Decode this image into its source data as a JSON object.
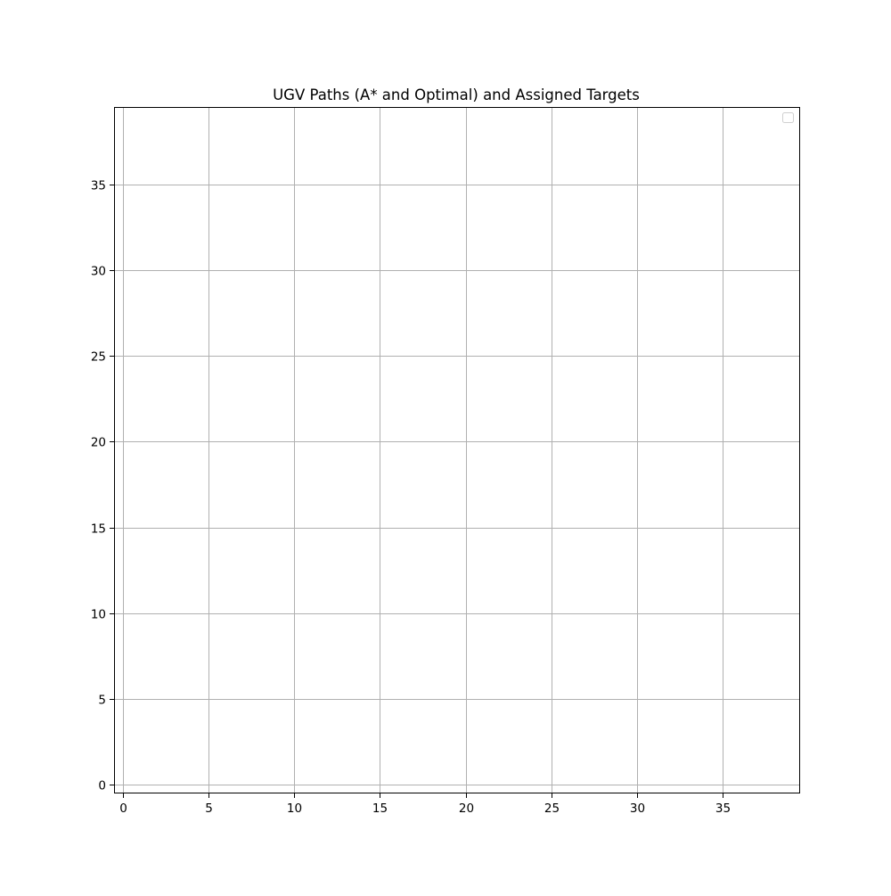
{
  "chart_data": {
    "type": "line",
    "title": "UGV Paths (A* and Optimal) and Assigned Targets",
    "xlabel": "",
    "ylabel": "",
    "xlim": [
      -0.5,
      39.5
    ],
    "ylim": [
      -0.5,
      39.5
    ],
    "xticks": [
      0,
      5,
      10,
      15,
      20,
      25,
      30,
      35
    ],
    "yticks": [
      0,
      5,
      10,
      15,
      20,
      25,
      30,
      35
    ],
    "grid": true,
    "legend": {
      "placement": "top-right",
      "entries": []
    },
    "series": []
  },
  "colors": {
    "grid": "#b0b0b0",
    "axes": "#000000",
    "background": "#ffffff"
  }
}
